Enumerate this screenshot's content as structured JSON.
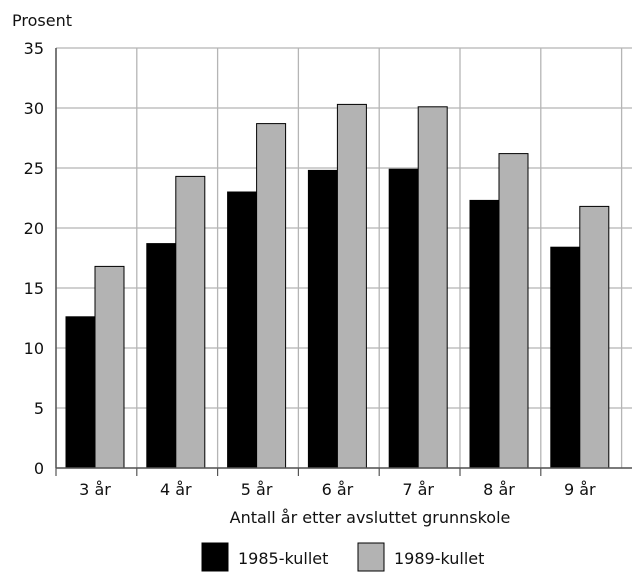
{
  "chart_data": {
    "type": "bar",
    "ylabel": "Prosent",
    "xlabel": "Antall år etter avsluttet grunnskole",
    "categories": [
      "3 år",
      "4 år",
      "5 år",
      "6 år",
      "7 år",
      "8 år",
      "9 år"
    ],
    "series": [
      {
        "name": "1985-kullet",
        "color": "#000000",
        "values": [
          12.6,
          18.7,
          23.0,
          24.8,
          24.9,
          22.3,
          18.4
        ]
      },
      {
        "name": "1989-kullet",
        "color": "#b3b3b3",
        "values": [
          16.8,
          24.3,
          28.7,
          30.3,
          30.1,
          26.2,
          21.8
        ]
      }
    ],
    "ylim": [
      0,
      35
    ],
    "yticks": [
      0,
      5,
      10,
      15,
      20,
      25,
      30,
      35
    ],
    "grid": true,
    "legend_position": "bottom"
  }
}
